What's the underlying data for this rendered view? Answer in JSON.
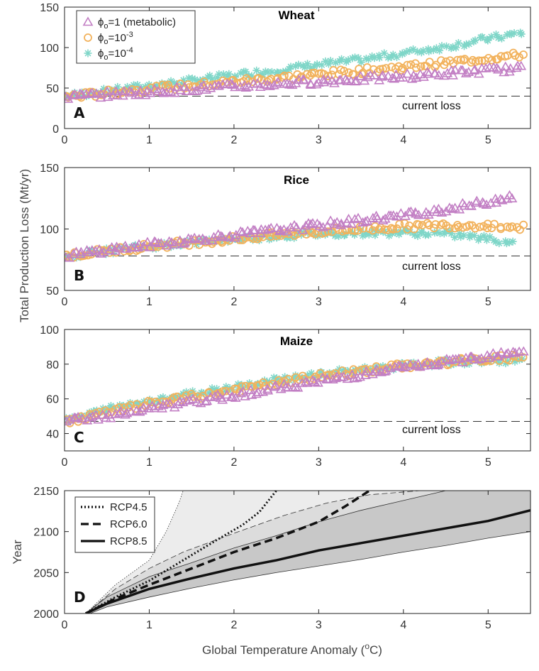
{
  "chart_data": [
    {
      "type": "scatter",
      "title": "Wheat",
      "panel_letter": "A",
      "xlim": [
        0,
        5.5
      ],
      "ylim": [
        0,
        150
      ],
      "yticks": [
        0,
        50,
        100,
        150
      ],
      "xticks": [
        0,
        1,
        2,
        3,
        4,
        5
      ],
      "reference_line": {
        "y": 40,
        "label": "current loss"
      },
      "series": [
        {
          "name": "φo=1 (metabolic)",
          "legend": {
            "base": "ϕ",
            "sub": "o",
            "text": "=1 (metabolic)",
            "sup": ""
          },
          "marker": "triangle",
          "color": "#c27fc4",
          "x": [
            0,
            0.5,
            1,
            1.5,
            2,
            2.5,
            3,
            3.5,
            4,
            4.5,
            5,
            5.4
          ],
          "y": [
            39,
            42,
            45,
            49,
            52,
            55,
            58,
            61,
            64,
            68,
            72,
            74
          ]
        },
        {
          "name": "φo=10^-3",
          "legend": {
            "base": "ϕ",
            "sub": "o",
            "text": "=10",
            "sup": "-3"
          },
          "marker": "circle",
          "color": "#f2b25c",
          "x": [
            0,
            0.5,
            1,
            1.5,
            2,
            2.5,
            3,
            3.5,
            4,
            4.5,
            5,
            5.4
          ],
          "y": [
            39,
            44,
            49,
            53,
            58,
            62,
            67,
            71,
            76,
            81,
            87,
            91
          ]
        },
        {
          "name": "φo=10^-4",
          "legend": {
            "base": "ϕ",
            "sub": "o",
            "text": "=10",
            "sup": "-4"
          },
          "marker": "asterisk",
          "color": "#7fd6c8",
          "x": [
            0,
            0.5,
            1,
            1.5,
            2,
            2.5,
            3,
            3.5,
            4,
            4.5,
            5,
            5.4
          ],
          "y": [
            40,
            46,
            53,
            59,
            66,
            72,
            79,
            85,
            93,
            101,
            111,
            118
          ]
        }
      ]
    },
    {
      "type": "scatter",
      "title": "Rice",
      "panel_letter": "B",
      "xlim": [
        0,
        5.5
      ],
      "ylim": [
        50,
        150
      ],
      "yticks": [
        50,
        100,
        150
      ],
      "xticks": [
        0,
        1,
        2,
        3,
        4,
        5
      ],
      "reference_line": {
        "y": 78,
        "label": "current loss"
      },
      "series": [
        {
          "name": "φo=1 (metabolic)",
          "marker": "triangle",
          "color": "#c27fc4",
          "x": [
            0,
            0.5,
            1,
            1.5,
            2,
            2.5,
            3,
            3.5,
            4,
            4.5,
            5,
            5.3
          ],
          "y": [
            78,
            83,
            87,
            91,
            95,
            99,
            103,
            107,
            111,
            116,
            122,
            127
          ]
        },
        {
          "name": "φo=10^-3",
          "marker": "circle",
          "color": "#f2b25c",
          "x": [
            0,
            0.5,
            1,
            1.5,
            2,
            2.5,
            3,
            3.5,
            4,
            4.5,
            5,
            5.4
          ],
          "y": [
            78,
            82,
            86,
            89,
            92,
            95,
            98,
            100,
            102,
            103,
            103,
            101
          ]
        },
        {
          "name": "φo=10^-4",
          "marker": "asterisk",
          "color": "#7fd6c8",
          "x": [
            0,
            0.5,
            1,
            1.5,
            2,
            2.5,
            3,
            3.5,
            4,
            4.5,
            5,
            5.3
          ],
          "y": [
            78,
            82,
            86,
            89,
            92,
            94,
            96,
            97,
            97,
            96,
            92,
            89
          ]
        }
      ]
    },
    {
      "type": "scatter",
      "title": "Maize",
      "panel_letter": "C",
      "xlim": [
        0,
        5.5
      ],
      "ylim": [
        30,
        100
      ],
      "yticks": [
        40,
        60,
        80,
        100
      ],
      "xticks": [
        0,
        1,
        2,
        3,
        4,
        5
      ],
      "reference_line": {
        "y": 47,
        "label": "current loss"
      },
      "series": [
        {
          "name": "φo=1 (metabolic)",
          "marker": "triangle",
          "color": "#c27fc4",
          "x": [
            0,
            0.5,
            1,
            1.5,
            2,
            2.5,
            3,
            3.5,
            4,
            4.5,
            5,
            5.4
          ],
          "y": [
            47,
            50,
            54,
            58,
            62,
            66,
            70,
            74,
            78,
            81,
            85,
            88
          ]
        },
        {
          "name": "φo=10^-3",
          "marker": "circle",
          "color": "#f2b25c",
          "x": [
            0,
            0.5,
            1,
            1.5,
            2,
            2.5,
            3,
            3.5,
            4,
            4.5,
            5,
            5.4
          ],
          "y": [
            47,
            52,
            57,
            61,
            65,
            69,
            73,
            76,
            79,
            81,
            83,
            84
          ]
        },
        {
          "name": "φo=10^-4",
          "marker": "asterisk",
          "color": "#7fd6c8",
          "x": [
            0,
            0.5,
            1,
            1.5,
            2,
            2.5,
            3,
            3.5,
            4,
            4.5,
            5,
            5.4
          ],
          "y": [
            47,
            54,
            59,
            63,
            67,
            71,
            74,
            77,
            79,
            81,
            82,
            82
          ]
        }
      ]
    },
    {
      "type": "line",
      "panel_letter": "D",
      "ylabel": "Year",
      "xlim": [
        0,
        5.5
      ],
      "ylim": [
        2000,
        2150
      ],
      "yticks": [
        2000,
        2050,
        2100,
        2150
      ],
      "xticks": [
        0,
        1,
        2,
        3,
        4,
        5
      ],
      "series": [
        {
          "name": "RCP4.5",
          "style": "dotted",
          "x": [
            0.25,
            0.6,
            1.0,
            1.4,
            1.8,
            2.1,
            2.3,
            2.5
          ],
          "y": [
            2000,
            2020,
            2040,
            2065,
            2090,
            2108,
            2124,
            2150
          ]
        },
        {
          "name": "RCP6.0",
          "style": "dashed",
          "x": [
            0.25,
            0.6,
            1.0,
            1.5,
            2.0,
            2.5,
            3.0,
            3.3,
            3.6
          ],
          "y": [
            2000,
            2018,
            2035,
            2055,
            2075,
            2092,
            2112,
            2130,
            2150
          ]
        },
        {
          "name": "RCP8.5",
          "style": "solid",
          "x": [
            0.25,
            0.5,
            1.0,
            1.5,
            2.0,
            2.5,
            3.0,
            3.5,
            4.0,
            4.5,
            5.0,
            5.5
          ],
          "y": [
            2000,
            2012,
            2030,
            2043,
            2055,
            2065,
            2077,
            2086,
            2095,
            2104,
            2113,
            2126
          ]
        }
      ],
      "bands": [
        {
          "name": "RCP8.5 range",
          "upper_x": [
            0.25,
            0.5,
            1.0,
            1.5,
            2.0,
            2.5,
            3.0,
            3.5,
            4.0,
            4.5
          ],
          "upper_y": [
            2000,
            2020,
            2045,
            2062,
            2080,
            2095,
            2112,
            2126,
            2138,
            2150
          ],
          "lower_x": [
            0.3,
            0.5,
            1.0,
            1.5,
            2.0,
            2.5,
            3.0,
            3.5,
            4.0,
            4.5,
            5.0,
            5.5
          ],
          "lower_y": [
            2000,
            2008,
            2020,
            2031,
            2041,
            2050,
            2058,
            2066,
            2075,
            2083,
            2092,
            2100
          ],
          "color": "#c8c8c8"
        },
        {
          "name": "RCP6.0 range",
          "upper_x": [
            0.25,
            0.6,
            1.0,
            1.4,
            2.0,
            2.6,
            3.1,
            3.6,
            4.2
          ],
          "upper_y": [
            2000,
            2030,
            2055,
            2075,
            2098,
            2120,
            2135,
            2145,
            2150
          ],
          "color": "#dcdcdc"
        },
        {
          "name": "RCP4.5 range",
          "upper_x": [
            0.25,
            0.6,
            1.0,
            1.2,
            1.35,
            1.4
          ],
          "upper_y": [
            2000,
            2035,
            2065,
            2100,
            2135,
            2150
          ],
          "color": "#ececec"
        }
      ]
    }
  ],
  "y_axis_label_shared": "Total Production Loss (Mt/yr)",
  "x_axis_label": {
    "text": "Global Temperature Anomaly (",
    "sup": "o",
    "unit": "C)"
  }
}
